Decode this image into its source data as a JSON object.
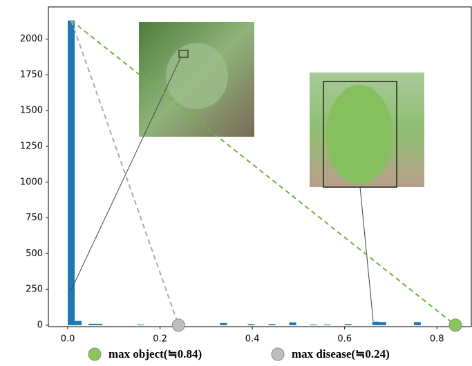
{
  "chart_data": {
    "type": "histogram",
    "bins": [
      0,
      0.015,
      0.03,
      0.045,
      0.06,
      0.075,
      0.09,
      0.105,
      0.12,
      0.135,
      0.15,
      0.165,
      0.18,
      0.195,
      0.21,
      0.225,
      0.24,
      0.255,
      0.27,
      0.285,
      0.3,
      0.315,
      0.33,
      0.345,
      0.36,
      0.375,
      0.39,
      0.405,
      0.42,
      0.435,
      0.45,
      0.465,
      0.48,
      0.495,
      0.51,
      0.525,
      0.54,
      0.555,
      0.57,
      0.585,
      0.6,
      0.615,
      0.63,
      0.645,
      0.66,
      0.675,
      0.69,
      0.705,
      0.72,
      0.735,
      0.75,
      0.765,
      0.78,
      0.795,
      0.81,
      0.825,
      0.84,
      0.855
    ],
    "values": [
      2130,
      30,
      0,
      10,
      10,
      0,
      0,
      0,
      0,
      0,
      5,
      0,
      0,
      0,
      0,
      0,
      0,
      0,
      0,
      0,
      0,
      0,
      15,
      0,
      0,
      0,
      8,
      0,
      0,
      8,
      0,
      0,
      20,
      0,
      0,
      5,
      0,
      5,
      0,
      0,
      8,
      0,
      0,
      0,
      25,
      22,
      0,
      0,
      0,
      0,
      22,
      0,
      0,
      0,
      0,
      0,
      0
    ],
    "color": "#1f77b4",
    "xlim": [
      -0.042,
      0.876
    ],
    "ylim": [
      -10,
      2225
    ],
    "xticks": [
      {
        "value": 0,
        "label": "0.0"
      },
      0.2,
      0.4,
      0.6,
      0.8
    ],
    "yticks": [
      0,
      250,
      500,
      750,
      1000,
      1250,
      1500,
      1750,
      2000
    ],
    "markers": [
      {
        "label": "max object(≒0.84)",
        "x": 0.84,
        "color": "#8cc55a"
      },
      {
        "label": "max disease(≒0.24)",
        "x": 0.24,
        "color": "#bfbfbf"
      }
    ]
  }
}
